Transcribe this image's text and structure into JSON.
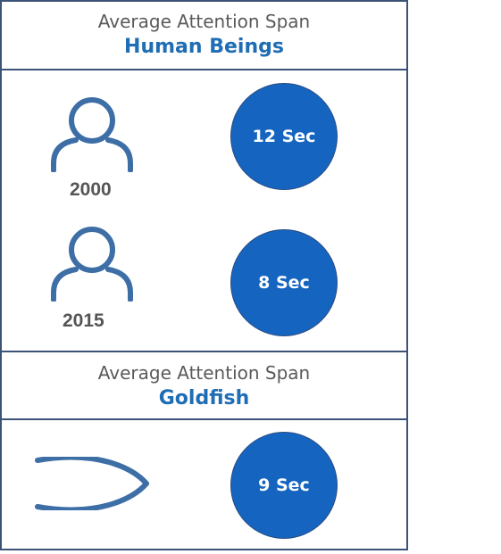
{
  "human_section": {
    "subtitle": "Average Attention Span",
    "title": "Human Beings",
    "rows": [
      {
        "year": "2000",
        "value": "12 Sec",
        "icon": "person-icon"
      },
      {
        "year": "2015",
        "value": "8 Sec",
        "icon": "person-icon"
      }
    ]
  },
  "goldfish_section": {
    "subtitle": "Average Attention Span",
    "title": "Goldfish",
    "value": "9 Sec",
    "icon": "fish-icon"
  },
  "colors": {
    "accent": "#1565c0",
    "title": "#1f6db4",
    "icon": "#3d6ea6",
    "border": "#3b5377",
    "text_gray": "#555555"
  }
}
